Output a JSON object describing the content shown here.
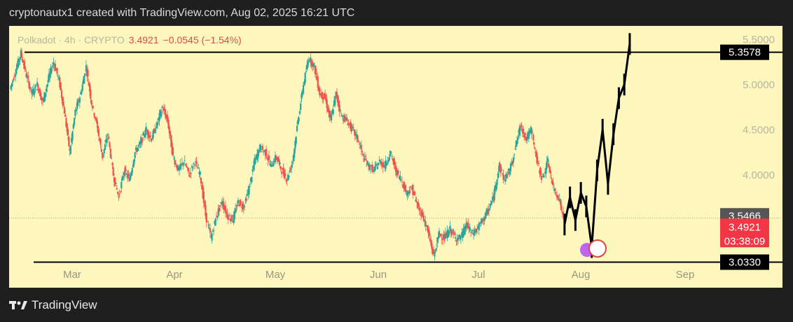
{
  "header": {
    "text": "cryptonautx1 created with TradingView.com, Aug 02, 2025 16:21 UTC"
  },
  "footer": {
    "brand": "TradingView"
  },
  "legend": {
    "symbol": "Polkadot · 4h · CRYPTO",
    "price": "3.4921",
    "change": "−0.0545 (−1.54%)"
  },
  "colors": {
    "background": "#fdf7bd",
    "up": "#26a69a",
    "down": "#ef5350",
    "projection": "#000000"
  },
  "chart_data": {
    "type": "line",
    "title": "",
    "xlabel": "",
    "ylabel": "",
    "x_ticks": [
      "Mar",
      "Apr",
      "May",
      "Jun",
      "Jul",
      "Aug",
      "Sep"
    ],
    "y_ticks": [
      5.5,
      5.0,
      4.5,
      4.0
    ],
    "ylim": [
      2.75,
      5.65
    ],
    "grid": false,
    "series": [
      {
        "style": "candles",
        "points": [
          [
            0.0,
            4.95
          ],
          [
            1.0,
            5.15
          ],
          [
            2.0,
            5.35
          ],
          [
            3.0,
            5.1
          ],
          [
            4.0,
            4.9
          ],
          [
            5.0,
            5.0
          ],
          [
            6.0,
            4.8
          ],
          [
            7.0,
            5.05
          ],
          [
            8.0,
            5.25
          ],
          [
            9.0,
            5.05
          ],
          [
            10.0,
            4.7
          ],
          [
            11.0,
            4.25
          ],
          [
            12.0,
            4.7
          ],
          [
            13.0,
            4.9
          ],
          [
            14.0,
            5.2
          ],
          [
            15.0,
            4.8
          ],
          [
            16.0,
            4.55
          ],
          [
            17.0,
            4.2
          ],
          [
            18.0,
            4.45
          ],
          [
            19.0,
            4.0
          ],
          [
            20.0,
            3.75
          ],
          [
            21.0,
            4.05
          ],
          [
            22.0,
            3.95
          ],
          [
            23.0,
            4.25
          ],
          [
            24.0,
            4.35
          ],
          [
            25.0,
            4.5
          ],
          [
            26.0,
            4.4
          ],
          [
            27.0,
            4.55
          ],
          [
            28.0,
            4.75
          ],
          [
            29.0,
            4.6
          ],
          [
            30.0,
            4.2
          ],
          [
            31.0,
            4.05
          ],
          [
            32.0,
            4.15
          ],
          [
            33.0,
            4.0
          ],
          [
            34.0,
            4.15
          ],
          [
            35.0,
            4.0
          ],
          [
            36.0,
            3.55
          ],
          [
            37.0,
            3.3
          ],
          [
            38.0,
            3.55
          ],
          [
            39.0,
            3.7
          ],
          [
            40.0,
            3.55
          ],
          [
            41.0,
            3.5
          ],
          [
            42.0,
            3.7
          ],
          [
            43.0,
            3.65
          ],
          [
            44.0,
            3.85
          ],
          [
            45.0,
            4.15
          ],
          [
            46.0,
            4.3
          ],
          [
            47.0,
            4.25
          ],
          [
            48.0,
            4.1
          ],
          [
            49.0,
            4.2
          ],
          [
            50.0,
            4.05
          ],
          [
            51.0,
            3.95
          ],
          [
            52.0,
            4.15
          ],
          [
            53.0,
            4.6
          ],
          [
            54.0,
            5.0
          ],
          [
            55.0,
            5.3
          ],
          [
            56.0,
            5.2
          ],
          [
            57.0,
            4.9
          ],
          [
            58.0,
            4.85
          ],
          [
            59.0,
            4.6
          ],
          [
            60.0,
            4.9
          ],
          [
            61.0,
            4.65
          ],
          [
            62.0,
            4.6
          ],
          [
            63.0,
            4.5
          ],
          [
            64.0,
            4.4
          ],
          [
            65.0,
            4.2
          ],
          [
            66.0,
            4.1
          ],
          [
            67.0,
            4.05
          ],
          [
            68.0,
            4.15
          ],
          [
            69.0,
            4.1
          ],
          [
            70.0,
            4.25
          ],
          [
            71.0,
            4.05
          ],
          [
            72.0,
            3.95
          ],
          [
            73.0,
            3.8
          ],
          [
            74.0,
            3.85
          ],
          [
            75.0,
            3.65
          ],
          [
            76.0,
            3.55
          ],
          [
            77.0,
            3.35
          ],
          [
            78.0,
            3.1
          ],
          [
            79.0,
            3.35
          ],
          [
            80.0,
            3.3
          ],
          [
            81.0,
            3.4
          ],
          [
            82.0,
            3.3
          ],
          [
            83.0,
            3.3
          ],
          [
            84.0,
            3.45
          ],
          [
            85.0,
            3.35
          ],
          [
            86.0,
            3.4
          ],
          [
            87.0,
            3.5
          ],
          [
            88.0,
            3.6
          ],
          [
            89.0,
            3.75
          ],
          [
            90.0,
            4.1
          ],
          [
            91.0,
            3.95
          ],
          [
            92.0,
            4.05
          ],
          [
            93.0,
            4.3
          ],
          [
            94.0,
            4.55
          ],
          [
            95.0,
            4.4
          ],
          [
            96.0,
            4.5
          ],
          [
            97.0,
            4.15
          ],
          [
            98.0,
            3.95
          ],
          [
            99.0,
            4.15
          ],
          [
            100.0,
            3.85
          ],
          [
            101.0,
            3.75
          ],
          [
            102.0,
            3.49
          ]
        ]
      },
      {
        "style": "projection",
        "points": [
          [
            102.0,
            3.45
          ],
          [
            103.0,
            3.75
          ],
          [
            104.0,
            3.5
          ],
          [
            105.0,
            3.8
          ],
          [
            106.0,
            3.65
          ],
          [
            107.0,
            3.2
          ],
          [
            108.0,
            4.05
          ],
          [
            109.0,
            4.5
          ],
          [
            110.0,
            3.9
          ],
          [
            111.0,
            4.45
          ],
          [
            112.0,
            4.85
          ],
          [
            113.0,
            5.0
          ],
          [
            114.0,
            5.45
          ]
        ]
      }
    ],
    "h_lines": [
      5.3578,
      3.033
    ],
    "current_price_line": 3.4921,
    "price_labels": [
      {
        "value": "5.3578",
        "style": "dark"
      },
      {
        "value": "3.5466",
        "style": "gray"
      },
      {
        "value": "3.4921",
        "style": "red"
      },
      {
        "value": "03:38:09",
        "style": "red"
      },
      {
        "value": "3.0330",
        "style": "dark"
      }
    ]
  }
}
